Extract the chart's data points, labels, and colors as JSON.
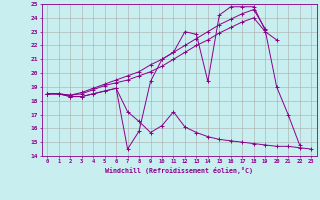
{
  "xlabel": "Windchill (Refroidissement éolien,°C)",
  "bg_color": "#c8eef0",
  "line_color": "#8b008b",
  "grid_color": "#aaaaaa",
  "xlim": [
    -0.5,
    23.5
  ],
  "ylim": [
    14,
    25
  ],
  "xticks": [
    0,
    1,
    2,
    3,
    4,
    5,
    6,
    7,
    8,
    9,
    10,
    11,
    12,
    13,
    14,
    15,
    16,
    17,
    18,
    19,
    20,
    21,
    22,
    23
  ],
  "yticks": [
    14,
    15,
    16,
    17,
    18,
    19,
    20,
    21,
    22,
    23,
    24,
    25
  ],
  "series1_x": [
    0,
    1,
    2,
    3,
    4,
    5,
    6,
    7,
    8,
    9,
    10,
    11,
    12,
    13,
    14,
    15,
    16,
    17,
    18,
    19,
    20,
    21,
    22
  ],
  "series1_y": [
    18.5,
    18.5,
    18.3,
    18.3,
    18.5,
    18.7,
    18.9,
    14.5,
    15.8,
    19.4,
    21.0,
    21.5,
    23.0,
    22.8,
    19.4,
    24.2,
    24.8,
    24.8,
    24.8,
    23.1,
    19.0,
    17.0,
    14.8
  ],
  "series2_x": [
    0,
    1,
    2,
    3,
    4,
    5,
    6,
    7,
    8,
    9,
    10,
    11,
    12,
    13,
    14,
    15,
    16,
    17,
    18,
    19,
    20,
    21,
    22,
    23
  ],
  "series2_y": [
    18.5,
    18.5,
    18.3,
    18.3,
    18.5,
    18.7,
    18.9,
    17.2,
    16.5,
    15.7,
    16.2,
    17.2,
    16.1,
    15.7,
    15.4,
    15.2,
    15.1,
    15.0,
    14.9,
    14.8,
    14.7,
    14.7,
    14.6,
    14.5
  ],
  "series3_x": [
    0,
    1,
    2,
    3,
    4,
    5,
    6,
    7,
    8,
    9,
    10,
    11,
    12,
    13,
    14,
    15,
    16,
    17,
    18,
    19,
    20
  ],
  "series3_y": [
    18.5,
    18.5,
    18.4,
    18.5,
    18.8,
    19.1,
    19.3,
    19.5,
    19.8,
    20.1,
    20.5,
    21.0,
    21.5,
    22.0,
    22.4,
    22.9,
    23.3,
    23.7,
    24.0,
    23.0,
    22.4
  ],
  "series4_x": [
    0,
    1,
    2,
    3,
    4,
    5,
    6,
    7,
    8,
    9,
    10,
    11,
    12,
    13,
    14,
    15,
    16,
    17,
    18,
    19
  ],
  "series4_y": [
    18.5,
    18.5,
    18.4,
    18.6,
    18.9,
    19.2,
    19.5,
    19.8,
    20.1,
    20.6,
    21.0,
    21.5,
    22.0,
    22.5,
    23.0,
    23.5,
    23.9,
    24.3,
    24.6,
    23.2
  ]
}
